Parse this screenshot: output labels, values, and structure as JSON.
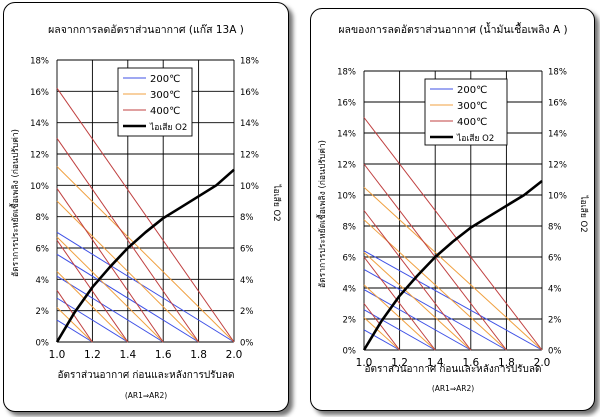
{
  "chart_data": [
    {
      "type": "line",
      "title": "ผลจากการลดอัตราส่วนอากาศ (แก๊ส 13A )",
      "xlabel": "อัตราส่วนอากาศ ก่อนและหลังการปรับลด",
      "xnote": "(AR1⇒AR2)",
      "ylabel": "อัตราการประหยัดเชื้อเพลิง (ก่อนปรับค่า)",
      "ylabel_right": "ไอเสีย O2",
      "xlim": [
        1.0,
        2.0
      ],
      "ylim": [
        0,
        18
      ],
      "xticks": [
        "1.0",
        "1.2",
        "1.4",
        "1.6",
        "1.8",
        "2.0"
      ],
      "yticks": [
        "0%",
        "2%",
        "4%",
        "6%",
        "8%",
        "10%",
        "12%",
        "14%",
        "16%",
        "18%"
      ],
      "grid": true,
      "legend_position": "top-right",
      "series": [
        {
          "name": "200℃",
          "color": "#3f51e6",
          "width": 1,
          "lines": [
            [
              1.0,
              7.0,
              2.0,
              0
            ],
            [
              1.0,
              5.6,
              1.8,
              0
            ],
            [
              1.0,
              4.2,
              1.6,
              0
            ],
            [
              1.0,
              2.8,
              1.4,
              0
            ],
            [
              1.0,
              1.4,
              1.2,
              0
            ]
          ]
        },
        {
          "name": "300℃",
          "color": "#f0a040",
          "width": 1,
          "lines": [
            [
              1.0,
              11.2,
              2.0,
              0
            ],
            [
              1.0,
              9.0,
              1.8,
              0
            ],
            [
              1.0,
              6.7,
              1.6,
              0
            ],
            [
              1.0,
              4.5,
              1.4,
              0
            ],
            [
              1.0,
              2.2,
              1.2,
              0
            ]
          ]
        },
        {
          "name": "400℃",
          "color": "#c04040",
          "width": 1,
          "lines": [
            [
              1.0,
              16.2,
              2.0,
              0
            ],
            [
              1.0,
              13.0,
              1.8,
              0
            ],
            [
              1.0,
              9.8,
              1.6,
              0
            ],
            [
              1.0,
              6.5,
              1.4,
              0
            ],
            [
              1.0,
              3.3,
              1.2,
              0
            ]
          ]
        },
        {
          "name": "ไอเสีย O2",
          "color": "#000000",
          "width": 2.6,
          "points": [
            [
              1.0,
              0
            ],
            [
              1.1,
              1.9
            ],
            [
              1.2,
              3.5
            ],
            [
              1.3,
              4.8
            ],
            [
              1.4,
              6.0
            ],
            [
              1.5,
              7.0
            ],
            [
              1.6,
              7.9
            ],
            [
              1.7,
              8.6
            ],
            [
              1.8,
              9.3
            ],
            [
              1.9,
              10.0
            ],
            [
              2.0,
              11.0
            ]
          ]
        }
      ]
    },
    {
      "type": "line",
      "title": "ผลของการลดอัตราส่วนอากาศ (น้ำมันเชื้อเพลิง A )",
      "xlabel": "อัตราส่วนอากาศ ก่อนและหลังการปรับลด",
      "xnote": "(AR1⇒AR2)",
      "ylabel": "อัตราการประหยัดเชื้อเพลิง (ก่อนปรับค่า)",
      "ylabel_right": "ไอเสีย O2",
      "xlim": [
        1.0,
        2.0
      ],
      "ylim": [
        0,
        18
      ],
      "xticks": [
        "1.0",
        "1.2",
        "1.4",
        "1.6",
        "1.8",
        "2.0"
      ],
      "yticks": [
        "0%",
        "2%",
        "4%",
        "6%",
        "8%",
        "10%",
        "12%",
        "14%",
        "16%",
        "18%"
      ],
      "grid": true,
      "legend_position": "top-right",
      "series": [
        {
          "name": "200℃",
          "color": "#3f51e6",
          "width": 1,
          "lines": [
            [
              1.0,
              6.4,
              2.0,
              0
            ],
            [
              1.0,
              5.2,
              1.8,
              0
            ],
            [
              1.0,
              3.9,
              1.6,
              0
            ],
            [
              1.0,
              2.6,
              1.4,
              0
            ],
            [
              1.0,
              1.3,
              1.2,
              0
            ]
          ]
        },
        {
          "name": "300℃",
          "color": "#f0a040",
          "width": 1,
          "lines": [
            [
              1.0,
              10.5,
              2.0,
              0
            ],
            [
              1.0,
              8.4,
              1.8,
              0
            ],
            [
              1.0,
              6.3,
              1.6,
              0
            ],
            [
              1.0,
              4.2,
              1.4,
              0
            ],
            [
              1.0,
              2.1,
              1.2,
              0
            ]
          ]
        },
        {
          "name": "400℃",
          "color": "#c04040",
          "width": 1,
          "lines": [
            [
              1.0,
              15.0,
              2.0,
              0
            ],
            [
              1.0,
              12.0,
              1.8,
              0
            ],
            [
              1.0,
              9.0,
              1.6,
              0
            ],
            [
              1.0,
              6.0,
              1.4,
              0
            ],
            [
              1.0,
              3.0,
              1.2,
              0
            ]
          ]
        },
        {
          "name": "ไอเสีย O2",
          "color": "#000000",
          "width": 2.6,
          "points": [
            [
              1.0,
              0
            ],
            [
              1.1,
              1.9
            ],
            [
              1.2,
              3.5
            ],
            [
              1.3,
              4.8
            ],
            [
              1.4,
              6.0
            ],
            [
              1.5,
              7.0
            ],
            [
              1.6,
              7.9
            ],
            [
              1.7,
              8.6
            ],
            [
              1.8,
              9.3
            ],
            [
              1.9,
              10.0
            ],
            [
              2.0,
              10.9
            ]
          ]
        }
      ]
    }
  ]
}
